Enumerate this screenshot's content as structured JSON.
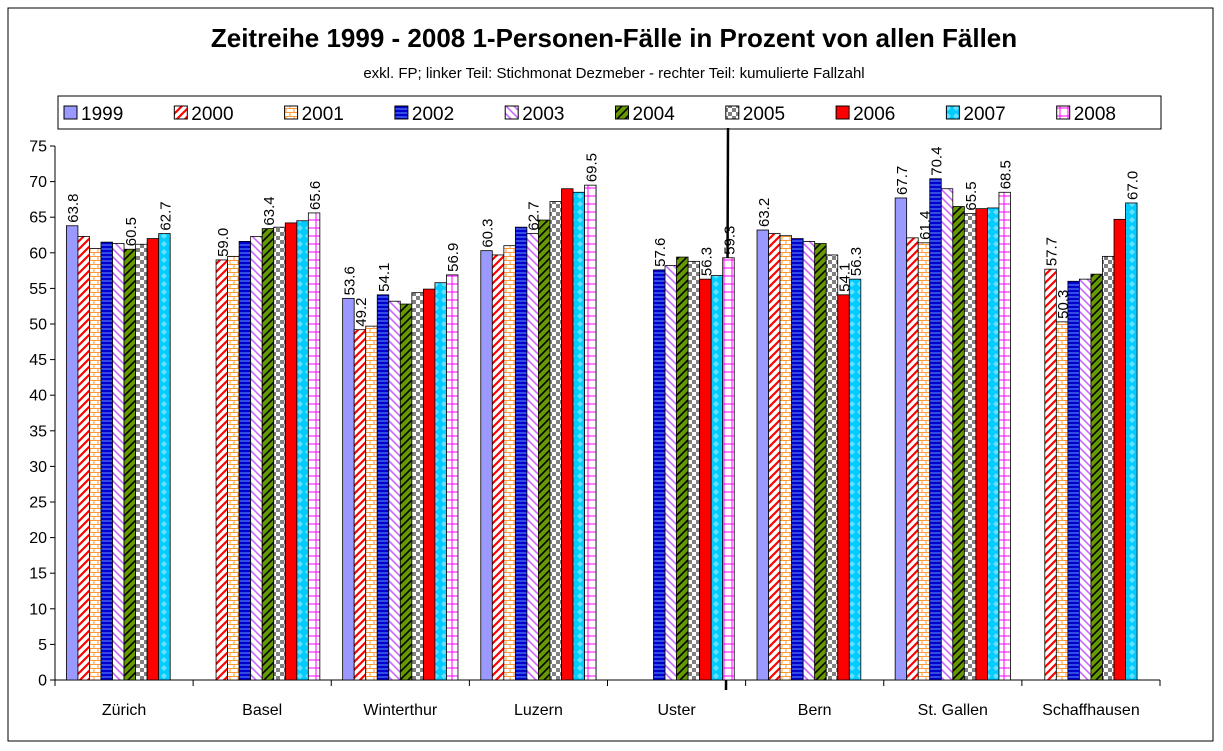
{
  "chart_data": {
    "type": "bar",
    "title": "Zeitreihe 1999 - 2008 1-Personen-Fälle in Prozent von allen Fällen",
    "subtitle": "exkl. FP; linker Teil: Stichmonat Dezmeber  - rechter Teil: kumulierte Fallzahl",
    "categories": [
      "Zürich",
      "Basel",
      "Winterthur",
      "Luzern",
      "Uster",
      "Bern",
      "St. Gallen",
      "Schaffhausen"
    ],
    "ylim": [
      0,
      75
    ],
    "yticks": [
      0,
      5,
      10,
      15,
      20,
      25,
      30,
      35,
      40,
      45,
      50,
      55,
      60,
      65,
      70,
      75
    ],
    "grid": false,
    "legend": "top",
    "series": [
      {
        "name": "1999",
        "color": "#9999ff",
        "values": [
          63.8,
          null,
          53.6,
          60.3,
          null,
          63.2,
          67.7,
          null
        ],
        "value_labels": [
          "63.8",
          null,
          "53.6",
          "60.3",
          null,
          "63.2",
          "67.7",
          null
        ]
      },
      {
        "name": "2000",
        "color": "#ff0000",
        "values": [
          62.3,
          59.0,
          49.2,
          59.7,
          null,
          62.7,
          62.1,
          57.7
        ],
        "value_labels": [
          null,
          "59.0",
          "49.2",
          null,
          null,
          null,
          null,
          "57.7"
        ]
      },
      {
        "name": "2001",
        "color": "#ff9933",
        "values": [
          60.6,
          59.5,
          49.7,
          61.0,
          null,
          62.4,
          61.4,
          50.3
        ],
        "value_labels": [
          null,
          null,
          null,
          null,
          null,
          null,
          "61.4",
          "50.3"
        ]
      },
      {
        "name": "2002",
        "color": "#0000cc",
        "values": [
          61.5,
          61.6,
          54.1,
          63.6,
          57.6,
          62.0,
          70.4,
          56.0
        ],
        "value_labels": [
          null,
          null,
          "54.1",
          null,
          "57.6",
          null,
          "70.4",
          null
        ]
      },
      {
        "name": "2003",
        "color": "#cc66ff",
        "values": [
          61.3,
          62.3,
          53.2,
          62.7,
          58.2,
          61.6,
          69.0,
          56.3
        ],
        "value_labels": [
          null,
          null,
          null,
          "62.7",
          null,
          null,
          null,
          null
        ]
      },
      {
        "name": "2004",
        "color": "#669900",
        "values": [
          60.5,
          63.4,
          52.8,
          64.6,
          59.4,
          61.3,
          66.5,
          57.0
        ],
        "value_labels": [
          "60.5",
          "63.4",
          null,
          null,
          null,
          null,
          null,
          null
        ]
      },
      {
        "name": "2005",
        "color": "#808080",
        "values": [
          61.2,
          63.6,
          54.4,
          67.2,
          58.8,
          59.7,
          65.5,
          59.5
        ],
        "value_labels": [
          null,
          null,
          null,
          null,
          null,
          null,
          "65.5",
          null
        ]
      },
      {
        "name": "2006",
        "color": "#ff0000",
        "values": [
          62.0,
          64.2,
          54.9,
          69.0,
          56.3,
          54.1,
          66.2,
          64.7
        ],
        "value_labels": [
          null,
          null,
          null,
          null,
          "56.3",
          "54.1",
          null,
          null
        ]
      },
      {
        "name": "2007",
        "color": "#00ccff",
        "values": [
          62.7,
          64.5,
          55.8,
          68.5,
          56.8,
          56.3,
          66.3,
          67.0
        ],
        "value_labels": [
          "62.7",
          null,
          null,
          null,
          null,
          "56.3",
          null,
          "67.0"
        ]
      },
      {
        "name": "2008",
        "color": "#ff00ff",
        "values": [
          null,
          65.6,
          56.9,
          69.5,
          59.3,
          null,
          68.5,
          null
        ],
        "value_labels": [
          null,
          "65.6",
          "56.9",
          "69.5",
          "59.3",
          null,
          "68.5",
          null
        ]
      }
    ]
  }
}
